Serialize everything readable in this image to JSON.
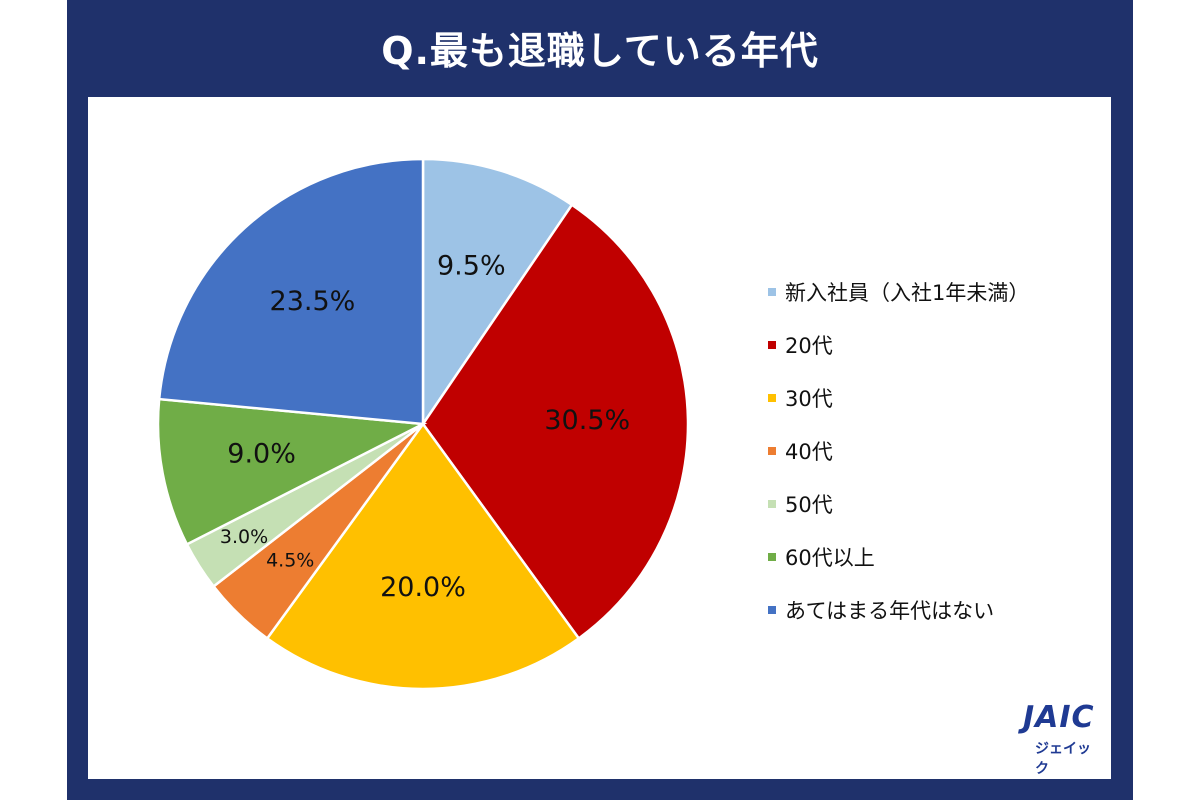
{
  "title": "Q.最も退職している年代",
  "chart_data": {
    "type": "pie",
    "title": "Q.最も退職している年代",
    "start": "top, clockwise",
    "slices": [
      {
        "label": "新入社員（入社1年未満）",
        "value": 9.5,
        "text": "9.5%",
        "color": "#9dc3e6"
      },
      {
        "label": "20代",
        "value": 30.5,
        "text": "30.5%",
        "color": "#c00000"
      },
      {
        "label": "30代",
        "value": 20.0,
        "text": "20.0%",
        "color": "#ffc000"
      },
      {
        "label": "40代",
        "value": 4.5,
        "text": "4.5%",
        "color": "#ed7d31"
      },
      {
        "label": "50代",
        "value": 3.0,
        "text": "3.0%",
        "color": "#c5e0b4"
      },
      {
        "label": "60代以上",
        "value": 9.0,
        "text": "9.0%",
        "color": "#70ad47"
      },
      {
        "label": "あてはまる年代はない",
        "value": 23.5,
        "text": "23.5%",
        "color": "#4472c4"
      }
    ],
    "legend_position": "right"
  },
  "logo": {
    "mark": "JAIC",
    "sub": "ジェイック"
  },
  "colors": {
    "frame": "#1f316b",
    "logo": "#1f3a93"
  }
}
